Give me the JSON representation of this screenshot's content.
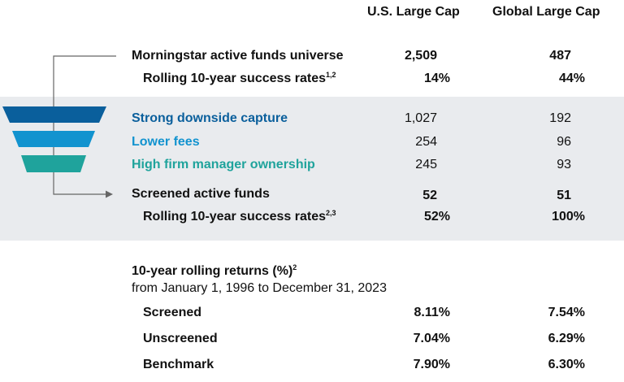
{
  "header": {
    "col1": "U.S. Large Cap",
    "col2": "Global Large Cap"
  },
  "universe": {
    "label": "Morningstar active funds universe",
    "us": "2,509",
    "global": "487",
    "success_label": "Rolling 10-year success rates",
    "success_sup": "1,2",
    "success_us": "14%",
    "success_global": "44%"
  },
  "screens": [
    {
      "label": "Strong downside capture",
      "us": "1,027",
      "global": "192",
      "color": "#0a5f9c"
    },
    {
      "label": "Lower fees",
      "us": "254",
      "global": "96",
      "color": "#1293cf"
    },
    {
      "label": "High firm manager ownership",
      "us": "245",
      "global": "93",
      "color": "#1fa39c"
    }
  ],
  "screened": {
    "label": "Screened active funds",
    "us": "52",
    "global": "51",
    "success_label": "Rolling 10-year success rates",
    "success_sup": "2,3",
    "success_us": "52%",
    "success_global": "100%"
  },
  "returns": {
    "title": "10-year rolling returns (%)",
    "title_sup": "2",
    "subtitle": "from January 1, 1996 to December 31, 2023",
    "rows": [
      {
        "label": "Screened",
        "us": "8.11%",
        "global": "7.54%"
      },
      {
        "label": "Unscreened",
        "us": "7.04%",
        "global": "6.29%"
      },
      {
        "label": "Benchmark",
        "us": "7.90%",
        "global": "6.30%"
      }
    ]
  },
  "chart_data": {
    "type": "table",
    "columns": [
      "U.S. Large Cap",
      "Global Large Cap"
    ],
    "funnel": [
      {
        "stage": "Morningstar active funds universe",
        "values": [
          2509,
          487
        ]
      },
      {
        "stage": "Strong downside capture",
        "values": [
          1027,
          192
        ]
      },
      {
        "stage": "Lower fees",
        "values": [
          254,
          96
        ]
      },
      {
        "stage": "High firm manager ownership",
        "values": [
          245,
          93
        ]
      },
      {
        "stage": "Screened active funds",
        "values": [
          52,
          51
        ]
      }
    ],
    "success_rates_pct": {
      "universe": [
        14,
        44
      ],
      "screened": [
        52,
        100
      ]
    },
    "rolling_returns_pct": [
      {
        "name": "Screened",
        "values": [
          8.11,
          7.54
        ]
      },
      {
        "name": "Unscreened",
        "values": [
          7.04,
          6.29
        ]
      },
      {
        "name": "Benchmark",
        "values": [
          7.9,
          6.3
        ]
      }
    ]
  }
}
